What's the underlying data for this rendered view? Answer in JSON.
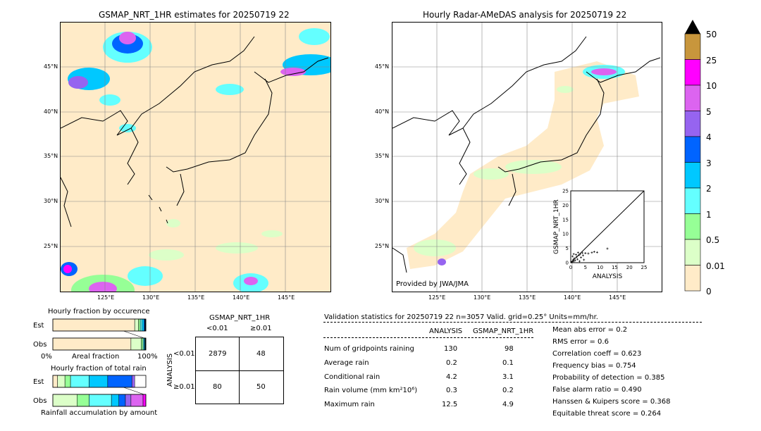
{
  "left_map": {
    "title": "GSMAP_NRT_1HR estimates for 20250719 22",
    "lat_labels": [
      "45°N",
      "40°N",
      "35°N",
      "30°N",
      "25°N"
    ],
    "lon_labels": [
      "125°E",
      "130°E",
      "135°E",
      "140°E",
      "145°E"
    ]
  },
  "right_map": {
    "title": "Hourly Radar-AMeDAS analysis for 20250719 22",
    "lat_labels": [
      "45°N",
      "40°N",
      "35°N",
      "30°N",
      "25°N"
    ],
    "lon_labels": [
      "125°E",
      "130°E",
      "135°E",
      "140°E",
      "145°E"
    ],
    "provided_by": "Provided by JWA/JMA"
  },
  "colorbar": {
    "labels": [
      "50",
      "25",
      "10",
      "5",
      "4",
      "3",
      "2",
      "1",
      "0.5",
      "0.01",
      "0"
    ],
    "colors": [
      "#c8963c",
      "#ff00ff",
      "#dc64f0",
      "#9664f0",
      "#0064ff",
      "#00c8ff",
      "#64ffff",
      "#96ff96",
      "#dcffc8",
      "#ffebc8"
    ]
  },
  "chart_data": [
    {
      "type": "scatter",
      "xlabel": "ANALYSIS",
      "ylabel": "GSMAP_NRT_1HR",
      "xlim": [
        0,
        25
      ],
      "ylim": [
        0,
        25
      ],
      "xticks": [
        "0",
        "5",
        "10",
        "15",
        "20",
        "25"
      ],
      "yticks": [
        "0",
        "5",
        "10",
        "15",
        "20",
        "25"
      ],
      "points": [
        [
          0.3,
          0.2
        ],
        [
          0.5,
          0.4
        ],
        [
          0.8,
          1.0
        ],
        [
          1.0,
          0.5
        ],
        [
          1.2,
          1.5
        ],
        [
          1.5,
          0.8
        ],
        [
          2.0,
          2.0
        ],
        [
          2.3,
          1.2
        ],
        [
          2.8,
          2.6
        ],
        [
          3.0,
          0.5
        ],
        [
          3.2,
          3.0
        ],
        [
          3.5,
          1.8
        ],
        [
          4.0,
          3.4
        ],
        [
          4.2,
          2.5
        ],
        [
          5.0,
          3.3
        ],
        [
          6.0,
          3.2
        ],
        [
          7.2,
          3.5
        ],
        [
          8.0,
          3.8
        ],
        [
          9.0,
          3.6
        ],
        [
          12.5,
          4.9
        ],
        [
          1.0,
          3.0
        ],
        [
          1.8,
          2.8
        ],
        [
          0.6,
          2.2
        ],
        [
          2.5,
          3.5
        ],
        [
          4.5,
          1.0
        ]
      ]
    },
    {
      "type": "bar",
      "title": "Hourly fraction by occurence",
      "categories": [
        "Est",
        "Obs"
      ],
      "xlabel": "Areal fraction",
      "xticks": [
        "0%",
        "100%"
      ],
      "series": [
        {
          "color": "#ffebc8",
          "values": [
            0.88,
            0.84
          ]
        },
        {
          "color": "#dcffc8",
          "values": [
            0.04,
            0.11
          ]
        },
        {
          "color": "#96ff96",
          "values": [
            0.02,
            0.02
          ]
        },
        {
          "color": "#64ffff",
          "values": [
            0.02,
            0.01
          ]
        },
        {
          "color": "#00c8ff",
          "values": [
            0.02,
            0.01
          ]
        },
        {
          "color": "#0064ff",
          "values": [
            0.01,
            0.0
          ]
        },
        {
          "color": "#000000",
          "values": [
            0.01,
            0.01
          ]
        }
      ]
    },
    {
      "type": "bar",
      "title": "Hourly fraction of total rain",
      "categories": [
        "Est",
        "Obs"
      ],
      "xlabel": "Rainfall accumulation by amount",
      "series": [
        {
          "color": "#ffebc8",
          "values": [
            0.05,
            0.0
          ]
        },
        {
          "color": "#dcffc8",
          "values": [
            0.08,
            0.26
          ]
        },
        {
          "color": "#96ff96",
          "values": [
            0.06,
            0.13
          ]
        },
        {
          "color": "#64ffff",
          "values": [
            0.2,
            0.24
          ]
        },
        {
          "color": "#00c8ff",
          "values": [
            0.2,
            0.08
          ]
        },
        {
          "color": "#0064ff",
          "values": [
            0.26,
            0.07
          ]
        },
        {
          "color": "#9664f0",
          "values": [
            0.03,
            0.06
          ]
        },
        {
          "color": "#dc64f0",
          "values": [
            0.0,
            0.13
          ]
        },
        {
          "color": "#ff00ff",
          "values": [
            0.0,
            0.03
          ]
        }
      ]
    }
  ],
  "contingency": {
    "title": "GSMAP_NRT_1HR",
    "col_labels": [
      "<0.01",
      "≥0.01"
    ],
    "row_labels": [
      "<0.01",
      "≥0.01"
    ],
    "side_label": "ANALYSIS",
    "cells": [
      "2879",
      "48",
      "80",
      "50"
    ]
  },
  "validation": {
    "header": "Validation statistics for 20250719 22  n=3057 Valid. grid=0.25° Units=mm/hr.",
    "col_analysis": "ANALYSIS",
    "col_gsmap": "GSMAP_NRT_1HR",
    "rows": [
      {
        "label": "Num of gridpoints raining",
        "analysis": "130",
        "gsmap": "98"
      },
      {
        "label": "Average rain",
        "analysis": "0.2",
        "gsmap": "0.1"
      },
      {
        "label": "Conditional rain",
        "analysis": "4.2",
        "gsmap": "3.1"
      },
      {
        "label": "Rain volume (mm km²10⁶)",
        "analysis": "0.3",
        "gsmap": "0.2"
      },
      {
        "label": "Maximum rain",
        "analysis": "12.5",
        "gsmap": "4.9"
      }
    ],
    "scores": [
      "Mean abs error =    0.2",
      "RMS error =    0.6",
      "Correlation coeff =  0.623",
      "Frequency bias =  0.754",
      "Probability of detection =  0.385",
      "False alarm ratio =  0.490",
      "Hanssen & Kuipers score =  0.368",
      "Equitable threat score =  0.264"
    ]
  }
}
